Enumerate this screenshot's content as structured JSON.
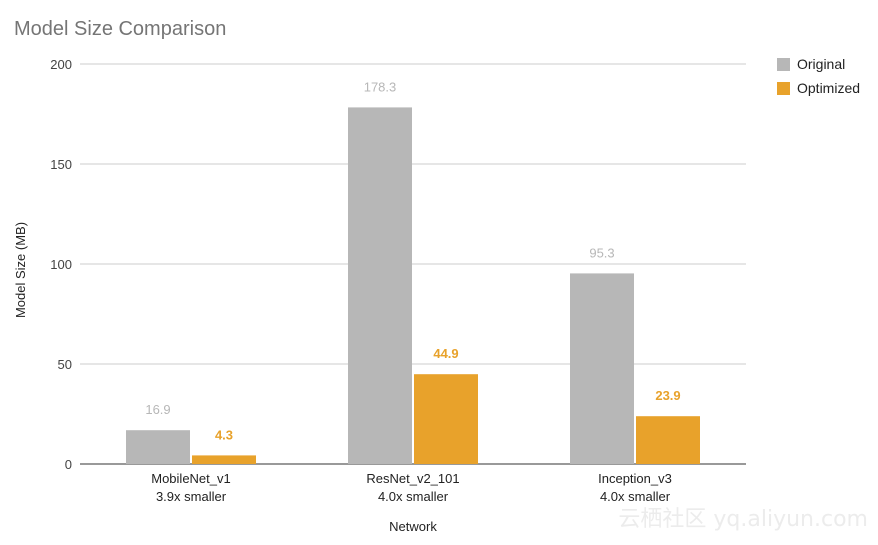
{
  "chart_data": {
    "type": "bar",
    "title": "Model Size Comparison",
    "xlabel": "Network",
    "ylabel": "Model Size (MB)",
    "ylim": [
      0,
      200
    ],
    "yticks": [
      0,
      50,
      100,
      150,
      200
    ],
    "grid": true,
    "legend_position": "top-right",
    "categories": [
      "MobileNet_v1",
      "ResNet_v2_101",
      "Inception_v3"
    ],
    "category_sublabels": [
      "3.9x smaller",
      "4.0x smaller",
      "4.0x smaller"
    ],
    "series": [
      {
        "name": "Original",
        "color": "#b7b7b7",
        "label_color": "#b7b7b7",
        "values": [
          16.9,
          178.3,
          95.3
        ],
        "labels": [
          "16.9",
          "178.3",
          "95.3"
        ]
      },
      {
        "name": "Optimized",
        "color": "#e8a22b",
        "label_color": "#e8a22b",
        "values": [
          4.3,
          44.9,
          23.9
        ],
        "labels": [
          "4.3",
          "44.9",
          "23.9"
        ]
      }
    ]
  },
  "watermark": "云栖社区 yq.aliyun.com"
}
